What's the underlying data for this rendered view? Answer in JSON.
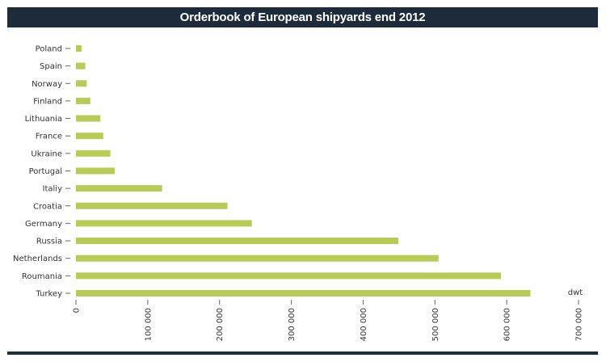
{
  "chart_data": {
    "type": "bar",
    "orientation": "horizontal",
    "title": "Orderbook of European shipyards end 2012",
    "xlabel": "dwt",
    "ylabel": "",
    "categories": [
      "Poland",
      "Spain",
      "Norway",
      "Finland",
      "Lithuania",
      "France",
      "Ukraine",
      "Portugal",
      "Italiy",
      "Croatia",
      "Germany",
      "Russia",
      "Netherlands",
      "Roumania",
      "Turkey"
    ],
    "values": [
      8000,
      13000,
      15000,
      20000,
      34000,
      38000,
      48000,
      54000,
      120000,
      211000,
      245000,
      449000,
      505000,
      592000,
      633000
    ],
    "xlim": [
      0,
      700000
    ],
    "xticks": [
      0,
      100000,
      200000,
      300000,
      400000,
      500000,
      600000,
      700000
    ],
    "xtick_labels": [
      "0",
      "100 000",
      "200 000",
      "300 000",
      "400 000",
      "500 000",
      "600 000",
      "700 000"
    ],
    "grid": false,
    "bar_color": "#b8cc55"
  }
}
